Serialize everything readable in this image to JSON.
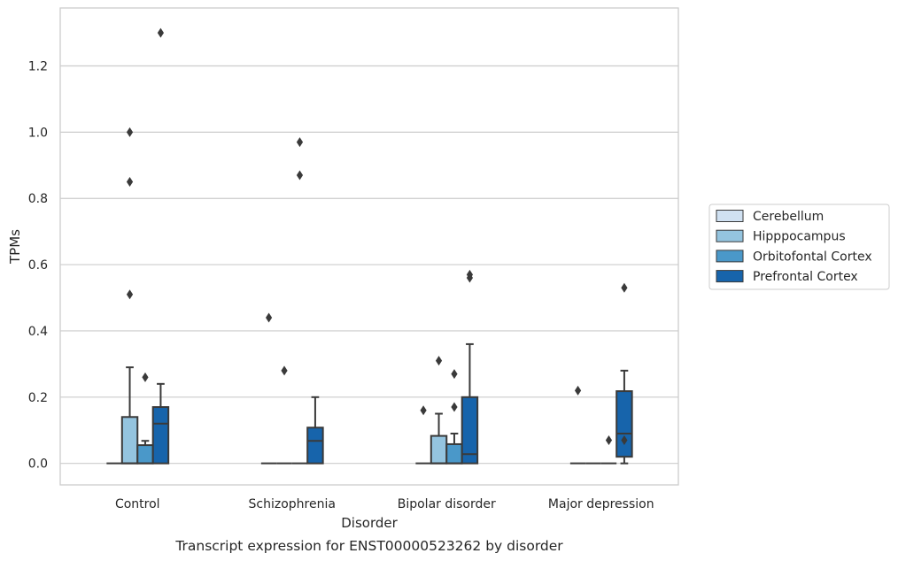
{
  "chart_data": {
    "type": "boxplot",
    "title": "",
    "caption": "Transcript expression for ENST00000523262 by disorder",
    "xlabel": "Disorder",
    "ylabel": "TPMs",
    "ylim": [
      -0.065,
      1.375
    ],
    "yticks": [
      0.0,
      0.2,
      0.4,
      0.6,
      0.8,
      1.0,
      1.2
    ],
    "ytick_labels": [
      "0.0",
      "0.2",
      "0.4",
      "0.6",
      "0.8",
      "1.0",
      "1.2"
    ],
    "categories": [
      "Control",
      "Schizophrenia",
      "Bipolar disorder",
      "Major depression"
    ],
    "grid": "horizontal",
    "legend_position": "right",
    "series": [
      {
        "name": "Cerebellum",
        "color": "#d0e1f2",
        "boxes": [
          {
            "min": 0,
            "q1": 0,
            "median": 0,
            "q3": 0,
            "max": 0,
            "outliers": []
          },
          {
            "min": 0,
            "q1": 0,
            "median": 0,
            "q3": 0,
            "max": 0,
            "outliers": [
              0.44
            ]
          },
          {
            "min": 0,
            "q1": 0,
            "median": 0,
            "q3": 0,
            "max": 0,
            "outliers": [
              0.16
            ]
          },
          {
            "min": 0,
            "q1": 0,
            "median": 0,
            "q3": 0,
            "max": 0,
            "outliers": [
              0.22
            ]
          }
        ]
      },
      {
        "name": "Hipppocampus",
        "color": "#94c4df",
        "boxes": [
          {
            "min": 0,
            "q1": 0,
            "median": 0,
            "q3": 0.14,
            "max": 0.29,
            "outliers": [
              0.51,
              0.85,
              1.0
            ]
          },
          {
            "min": 0,
            "q1": 0,
            "median": 0,
            "q3": 0,
            "max": 0,
            "outliers": [
              0.28
            ]
          },
          {
            "min": 0,
            "q1": 0,
            "median": 0,
            "q3": 0.083,
            "max": 0.15,
            "outliers": [
              0.31
            ]
          },
          {
            "min": 0,
            "q1": 0,
            "median": 0,
            "q3": 0,
            "max": 0,
            "outliers": []
          }
        ]
      },
      {
        "name": "Orbitofontal Cortex",
        "color": "#4a98c9",
        "boxes": [
          {
            "min": 0,
            "q1": 0,
            "median": 0,
            "q3": 0.055,
            "max": 0.068,
            "outliers": [
              0.26
            ]
          },
          {
            "min": 0,
            "q1": 0,
            "median": 0,
            "q3": 0,
            "max": 0,
            "outliers": [
              0.87,
              0.97
            ]
          },
          {
            "min": 0,
            "q1": 0,
            "median": 0,
            "q3": 0.058,
            "max": 0.09,
            "outliers": [
              0.17,
              0.27
            ]
          },
          {
            "min": 0,
            "q1": 0,
            "median": 0,
            "q3": 0,
            "max": 0,
            "outliers": [
              0.07
            ]
          }
        ]
      },
      {
        "name": "Prefrontal Cortex",
        "color": "#1764ab",
        "boxes": [
          {
            "min": 0,
            "q1": 0,
            "median": 0.12,
            "q3": 0.17,
            "max": 0.24,
            "outliers": [
              1.3
            ]
          },
          {
            "min": 0,
            "q1": 0,
            "median": 0.068,
            "q3": 0.108,
            "max": 0.2,
            "outliers": []
          },
          {
            "min": 0,
            "q1": 0,
            "median": 0.028,
            "q3": 0.2,
            "max": 0.36,
            "outliers": [
              0.56,
              0.57
            ]
          },
          {
            "min": 0,
            "q1": 0.02,
            "median": 0.09,
            "q3": 0.218,
            "max": 0.28,
            "outliers": [
              0.07,
              0.53
            ]
          }
        ]
      }
    ]
  }
}
